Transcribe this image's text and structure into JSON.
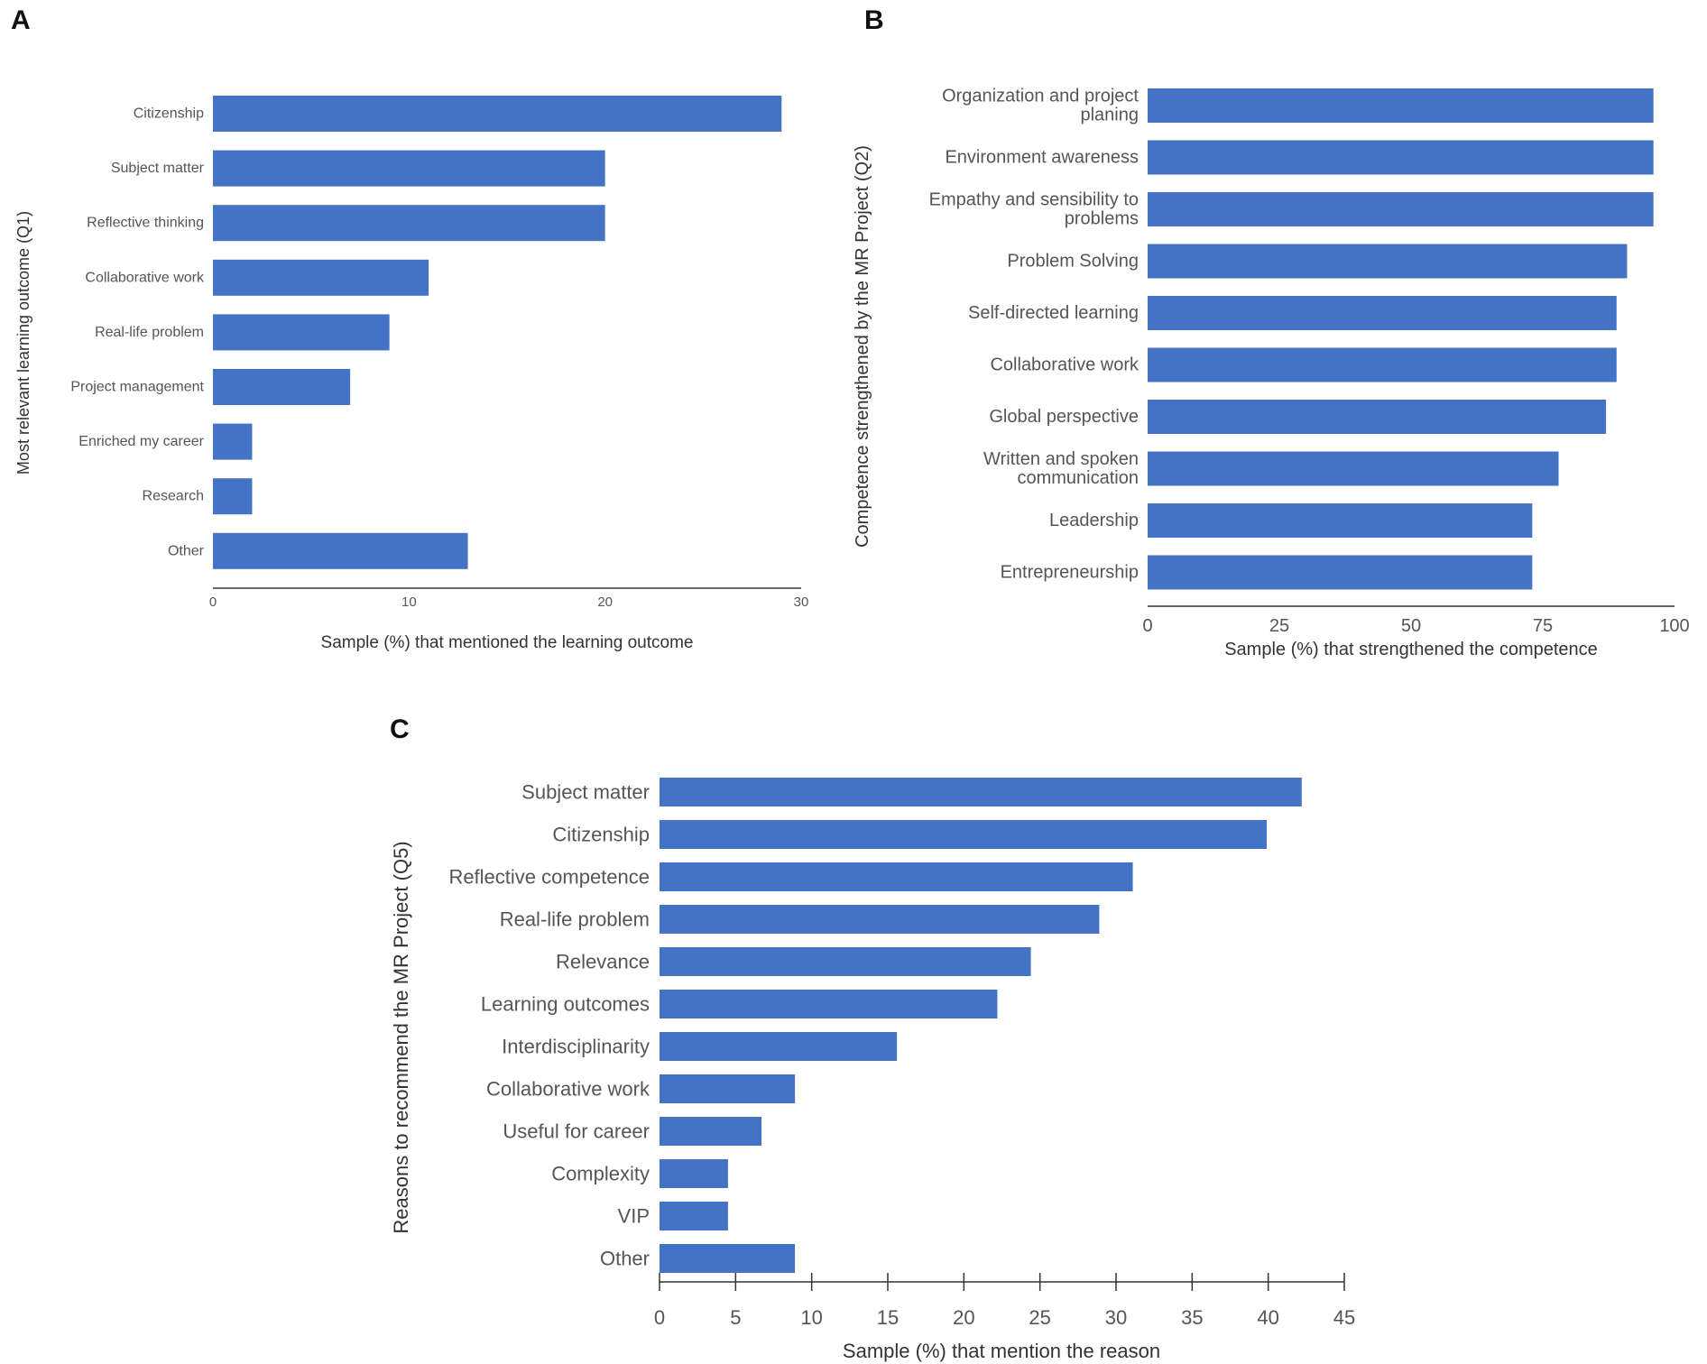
{
  "chart_data": [
    {
      "panel": "A",
      "type": "bar",
      "orientation": "horizontal",
      "categories": [
        "Citizenship",
        "Subject matter",
        "Reflective thinking",
        "Collaborative work",
        "Real-life problem",
        "Project management",
        "Enriched my career",
        "Research",
        "Other"
      ],
      "values": [
        29,
        20,
        20,
        11,
        9,
        7,
        2,
        2,
        13
      ],
      "xlabel": "Sample (%) that mentioned the learning outcome",
      "ylabel": "Most relevant learning outcome (Q1)",
      "xlim": [
        0,
        30
      ],
      "ticks": [
        "0",
        "10",
        "20",
        "30"
      ],
      "tick_values": [
        0,
        10,
        20,
        30
      ],
      "grid": false
    },
    {
      "panel": "B",
      "type": "bar",
      "orientation": "horizontal",
      "categories": [
        [
          "Organization and project",
          "planing"
        ],
        [
          "Environment awareness"
        ],
        [
          "Empathy and sensibility to",
          "problems"
        ],
        [
          "Problem Solving"
        ],
        [
          "Self-directed learning"
        ],
        [
          "Collaborative work"
        ],
        [
          "Global perspective"
        ],
        [
          "Written and spoken",
          "communication"
        ],
        [
          "Leadership"
        ],
        [
          "Entrepreneurship"
        ]
      ],
      "values": [
        96,
        96,
        96,
        91,
        89,
        89,
        87,
        78,
        73,
        73
      ],
      "xlabel": "Sample (%) that strengthened the competence",
      "ylabel": "Competence strengthened by the MR Project (Q2)",
      "xlim": [
        0,
        100
      ],
      "ticks": [
        "0",
        "25",
        "50",
        "75",
        "100"
      ],
      "tick_values": [
        0,
        25,
        50,
        75,
        100
      ],
      "grid": false
    },
    {
      "panel": "C",
      "type": "bar",
      "orientation": "horizontal",
      "categories": [
        "Subject matter",
        "Citizenship",
        "Reflective competence",
        "Real-life problem",
        "Relevance",
        "Learning outcomes",
        "Interdisciplinarity",
        "Collaborative work",
        "Useful for career",
        "Complexity",
        "VIP",
        "Other"
      ],
      "values": [
        42.2,
        39.9,
        31.1,
        28.9,
        24.4,
        22.2,
        15.6,
        8.9,
        6.7,
        4.5,
        4.5,
        8.9
      ],
      "xlabel": "Sample (%) that mention the reason",
      "ylabel": "Reasons to recommend the MR Project (Q5)",
      "xlim": [
        0,
        45
      ],
      "ticks": [
        "0",
        "5",
        "10",
        "15",
        "20",
        "25",
        "30",
        "35",
        "40",
        "45"
      ],
      "tick_values": [
        0,
        5,
        10,
        15,
        20,
        25,
        30,
        35,
        40,
        45
      ],
      "grid": false
    }
  ],
  "colors": {
    "bar": "#4472c4",
    "axis": "#333333",
    "label": "#555555"
  }
}
